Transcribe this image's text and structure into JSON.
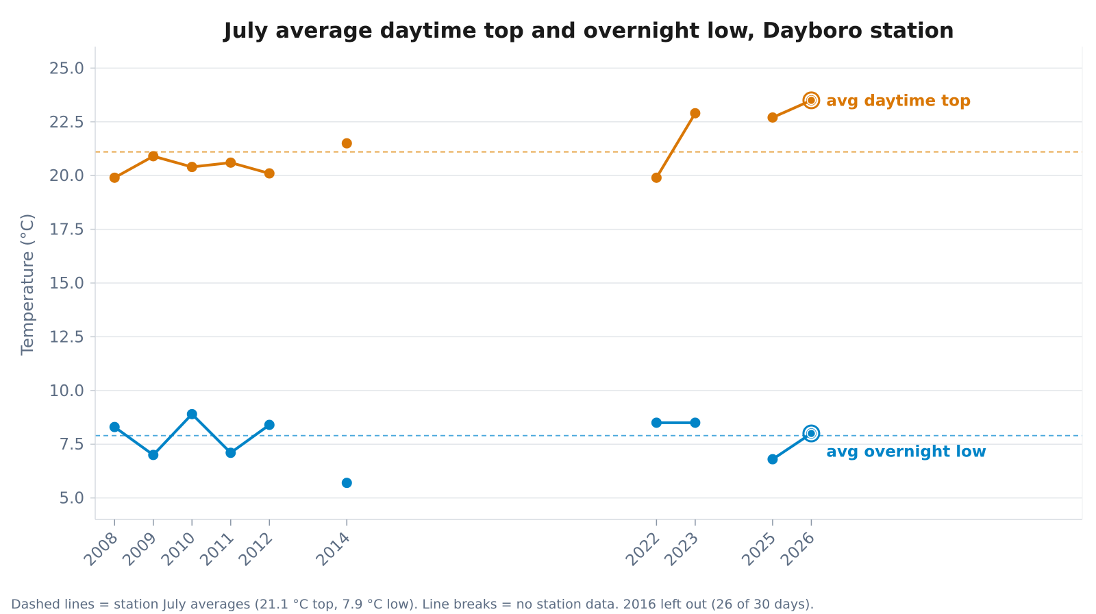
{
  "chart_data": {
    "type": "line",
    "title": "July average daytime top and overnight low, Dayboro station",
    "ylabel": "Temperature (°C)",
    "xlabel": "",
    "ylim": [
      4,
      26
    ],
    "xlim": [
      2007.5,
      2033
    ],
    "yticks": [
      5.0,
      7.5,
      10.0,
      12.5,
      15.0,
      17.5,
      20.0,
      22.5,
      25.0
    ],
    "ytick_labels": [
      "5.0",
      "7.5",
      "10.0",
      "12.5",
      "15.0",
      "17.5",
      "20.0",
      "22.5",
      "25.0"
    ],
    "x": [
      2008,
      2009,
      2010,
      2011,
      2012,
      2014,
      2022,
      2023,
      2025,
      2026
    ],
    "xtick_labels": [
      "2008",
      "2009",
      "2010",
      "2011",
      "2012",
      "2014",
      "2022",
      "2023",
      "2025",
      "2026"
    ],
    "grid": "horizontal",
    "series": [
      {
        "name": "avg daytime top",
        "color": "#d97706",
        "values": [
          19.9,
          20.9,
          20.4,
          20.6,
          20.1,
          21.5,
          19.9,
          22.9,
          22.7,
          23.5
        ],
        "reference": 21.1
      },
      {
        "name": "avg overnight low",
        "color": "#0284c7",
        "values": [
          8.3,
          7.0,
          8.9,
          7.1,
          8.4,
          5.7,
          8.5,
          8.5,
          6.8,
          8.0
        ],
        "reference": 7.9
      }
    ],
    "caption": "Dashed lines = station July averages (21.1 °C top, 7.9 °C low). Line breaks = no station data. 2016 left out (26 of 30 days)."
  }
}
